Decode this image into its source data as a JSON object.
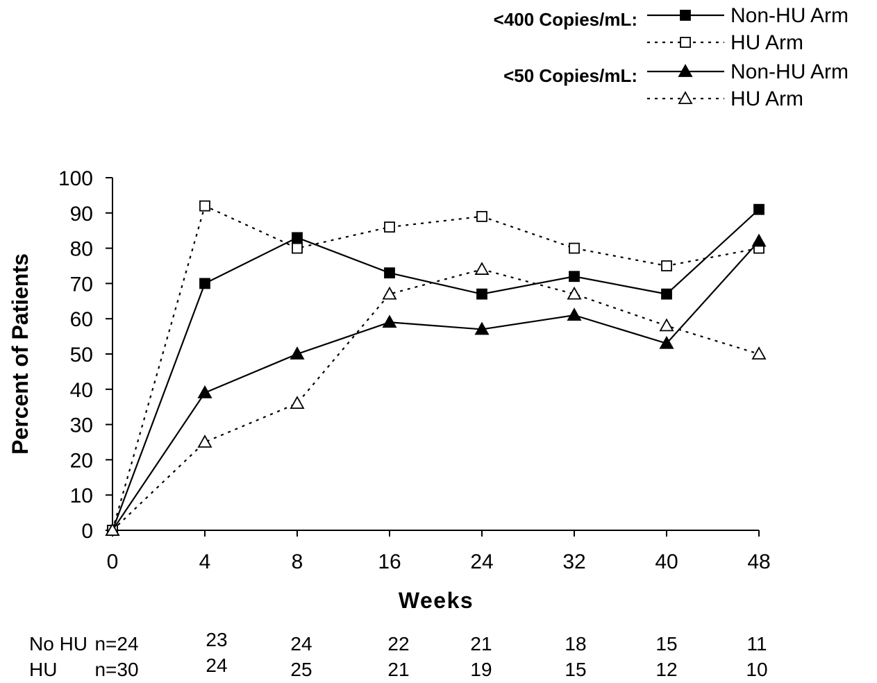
{
  "chart_data": {
    "type": "line",
    "title": "",
    "xlabel": "Weeks",
    "ylabel": "Percent of Patients",
    "categories": [
      "0",
      "4",
      "8",
      "16",
      "24",
      "32",
      "40",
      "48"
    ],
    "yticks": [
      "0",
      "10",
      "20",
      "30",
      "40",
      "50",
      "60",
      "70",
      "80",
      "90",
      "100"
    ],
    "ylim": [
      0,
      100
    ],
    "grid": false,
    "legend_position": "top-right",
    "legend_groups": [
      {
        "title": "<400 Copies/mL:",
        "entries": [
          "Non-HU Arm",
          "HU Arm"
        ]
      },
      {
        "title": "<50 Copies/mL:",
        "entries": [
          "Non-HU Arm",
          "HU Arm"
        ]
      }
    ],
    "series": [
      {
        "name": "Non-HU Arm",
        "group": "<400 Copies/mL",
        "marker": "filled-square",
        "line": "solid",
        "values": [
          0,
          70,
          83,
          73,
          67,
          72,
          67,
          91
        ]
      },
      {
        "name": "HU Arm",
        "group": "<400 Copies/mL",
        "marker": "open-square",
        "line": "dotted",
        "values": [
          0,
          92,
          80,
          86,
          89,
          80,
          75,
          80
        ]
      },
      {
        "name": "Non-HU Arm",
        "group": "<50 Copies/mL",
        "marker": "filled-triangle",
        "line": "solid",
        "values": [
          0,
          39,
          50,
          59,
          57,
          61,
          53,
          82
        ]
      },
      {
        "name": "HU Arm",
        "group": "<50 Copies/mL",
        "marker": "open-triangle",
        "line": "dotted",
        "values": [
          0,
          25,
          36,
          67,
          74,
          67,
          58,
          50
        ]
      }
    ],
    "n_table": [
      {
        "label": "No HU",
        "values": [
          "n=24",
          "23",
          "24",
          "22",
          "21",
          "18",
          "15",
          "11"
        ]
      },
      {
        "label": "HU",
        "values": [
          "n=30",
          "24",
          "25",
          "21",
          "19",
          "15",
          "12",
          "10"
        ]
      }
    ]
  }
}
